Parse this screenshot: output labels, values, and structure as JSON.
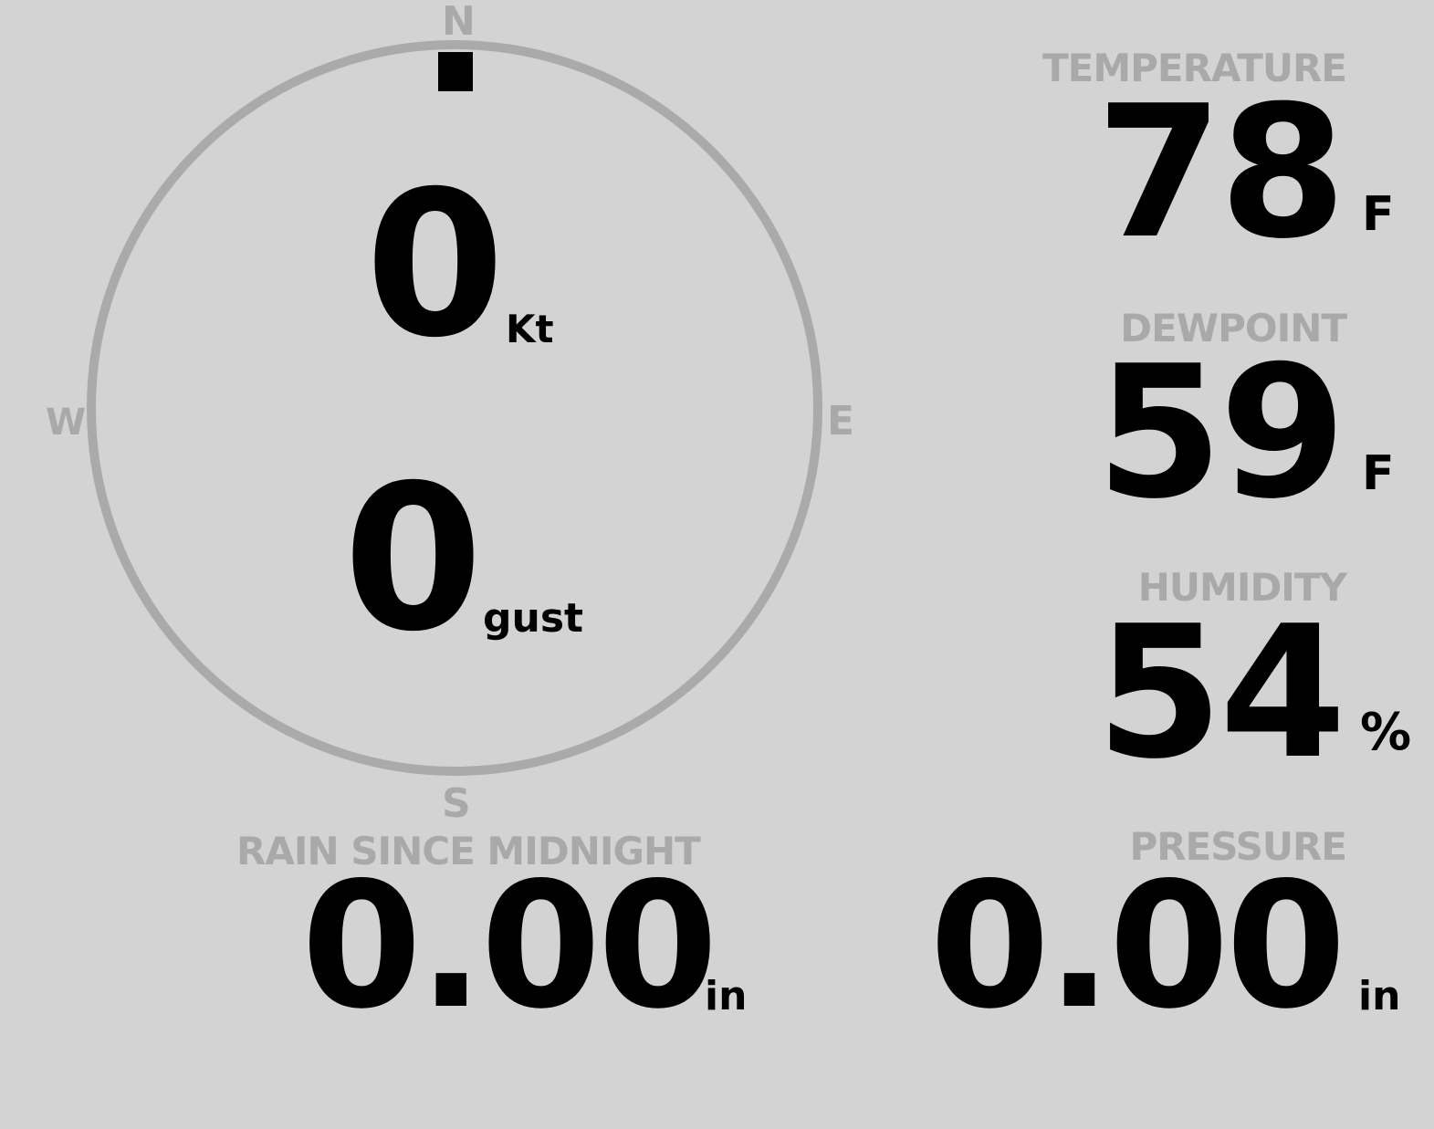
{
  "wind": {
    "compass": {
      "north": "N",
      "south": "S",
      "east": "E",
      "west": "W"
    },
    "direction_degrees": 0,
    "speed": "0",
    "speed_unit": "Kt",
    "gust": "0",
    "gust_unit": "gust",
    "ring_color": "#aaaaaa",
    "indicator_color": "#000000"
  },
  "temperature": {
    "label": "TEMPERATURE",
    "value": "78",
    "unit": "F"
  },
  "dewpoint": {
    "label": "DEWPOINT",
    "value": "59",
    "unit": "F"
  },
  "humidity": {
    "label": "HUMIDITY",
    "value": "54",
    "unit": "%"
  },
  "rain": {
    "label": "RAIN SINCE MIDNIGHT",
    "value": "0.00",
    "unit": "in"
  },
  "pressure": {
    "label": "PRESSURE",
    "value": "0.00",
    "unit": "in"
  }
}
